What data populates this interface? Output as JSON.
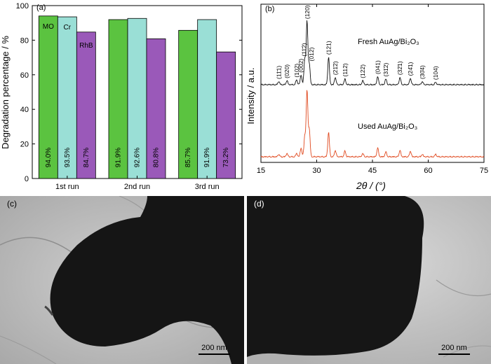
{
  "panels": {
    "a": {
      "label": "(a)"
    },
    "b": {
      "label": "(b)"
    },
    "c": {
      "label": "(c)",
      "scale_bar": "200 nm"
    },
    "d": {
      "label": "(d)",
      "scale_bar": "200 nm"
    }
  },
  "chart_data": [
    {
      "type": "bar",
      "title": "",
      "xlabel": "",
      "ylabel": "Degradation percentage / %",
      "ylim": [
        0,
        100
      ],
      "yticks": [
        "0",
        "20",
        "40",
        "60",
        "80",
        "100"
      ],
      "categories": [
        "1st run",
        "2nd run",
        "3rd run"
      ],
      "series": [
        {
          "name": "MO",
          "color": "#5bc340",
          "values": [
            94.0,
            91.9,
            85.7
          ],
          "labels": [
            "94.0%",
            "91.9%",
            "85.7%"
          ]
        },
        {
          "name": "Cr",
          "color": "#9adfd6",
          "values": [
            93.5,
            92.6,
            91.9
          ],
          "labels": [
            "93.5%",
            "92.6%",
            "91.9%"
          ]
        },
        {
          "name": "RhB",
          "color": "#9a59b9",
          "values": [
            84.7,
            80.8,
            73.2
          ],
          "labels": [
            "84.7%",
            "80.8%",
            "73.2%"
          ]
        }
      ],
      "grid": false
    },
    {
      "type": "line",
      "title": "",
      "xlabel": "2θ / (°)",
      "ylabel": "Intensity / a.u.",
      "xlim": [
        15,
        75
      ],
      "xticks": [
        "15",
        "30",
        "45",
        "60",
        "75"
      ],
      "series": [
        {
          "name": "Fresh AuAg/Bi₂O₃",
          "color": "#111111",
          "peaks": [
            [
              19.8,
              4
            ],
            [
              22.0,
              5
            ],
            [
              24.6,
              6
            ],
            [
              25.8,
              12
            ],
            [
              26.8,
              32
            ],
            [
              27.4,
              78
            ],
            [
              28.0,
              26
            ],
            [
              33.2,
              34
            ],
            [
              35.0,
              9
            ],
            [
              37.6,
              7
            ],
            [
              42.4,
              5
            ],
            [
              46.4,
              10
            ],
            [
              48.6,
              7
            ],
            [
              52.4,
              9
            ],
            [
              55.2,
              8
            ],
            [
              58.4,
              4
            ],
            [
              62.0,
              3
            ]
          ]
        },
        {
          "name": "Used AuAg/Bi₂O₃",
          "color": "#e0491f",
          "peaks": [
            [
              19.8,
              3
            ],
            [
              22.0,
              4
            ],
            [
              24.6,
              4
            ],
            [
              25.8,
              11
            ],
            [
              26.8,
              26
            ],
            [
              27.4,
              82
            ],
            [
              28.0,
              34
            ],
            [
              33.2,
              30
            ],
            [
              35.0,
              8
            ],
            [
              37.6,
              7
            ],
            [
              42.4,
              4
            ],
            [
              46.4,
              11
            ],
            [
              48.6,
              6
            ],
            [
              52.4,
              8
            ],
            [
              55.2,
              7
            ],
            [
              58.4,
              3
            ],
            [
              62.0,
              3
            ]
          ]
        }
      ],
      "annotations": [
        {
          "text": "(11̄1)",
          "x": 19.8
        },
        {
          "text": "(020)",
          "x": 22.0
        },
        {
          "text": "(102)",
          "x": 24.6
        },
        {
          "text": "(002)",
          "x": 25.8
        },
        {
          "text": "(11̄2)",
          "x": 26.6
        },
        {
          "text": "(120)",
          "x": 27.5
        },
        {
          "text": "(012)",
          "x": 28.6
        },
        {
          "text": "(121)",
          "x": 33.2
        },
        {
          "text": "(21̄2)",
          "x": 35.0
        },
        {
          "text": "(112)",
          "x": 37.6
        },
        {
          "text": "(122)",
          "x": 42.4
        },
        {
          "text": "(041)",
          "x": 46.4
        },
        {
          "text": "(31̄2)",
          "x": 48.6
        },
        {
          "text": "(32̄1)",
          "x": 52.4
        },
        {
          "text": "(24̄1)",
          "x": 55.2
        },
        {
          "text": "(30̄4)",
          "x": 58.4
        },
        {
          "text": "(104)",
          "x": 62.0
        }
      ]
    }
  ]
}
